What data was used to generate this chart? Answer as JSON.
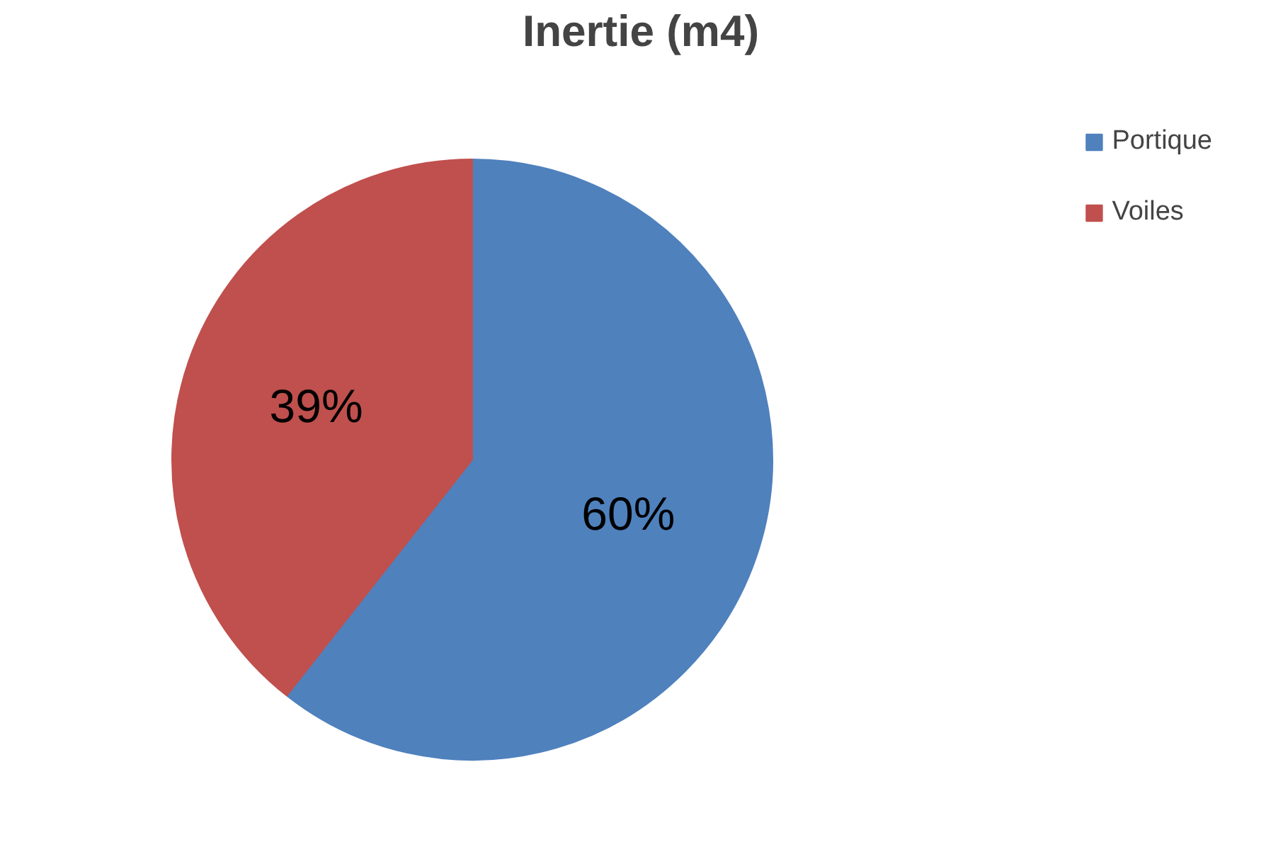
{
  "chart_data": {
    "type": "pie",
    "title": "Inertie (m4)",
    "categories": [
      "Portique",
      "Voiles"
    ],
    "values": [
      60,
      39
    ],
    "colors": [
      "#4f81bd",
      "#c0504d"
    ],
    "value_labels": [
      "60%",
      "39%"
    ],
    "legend": "top right"
  }
}
